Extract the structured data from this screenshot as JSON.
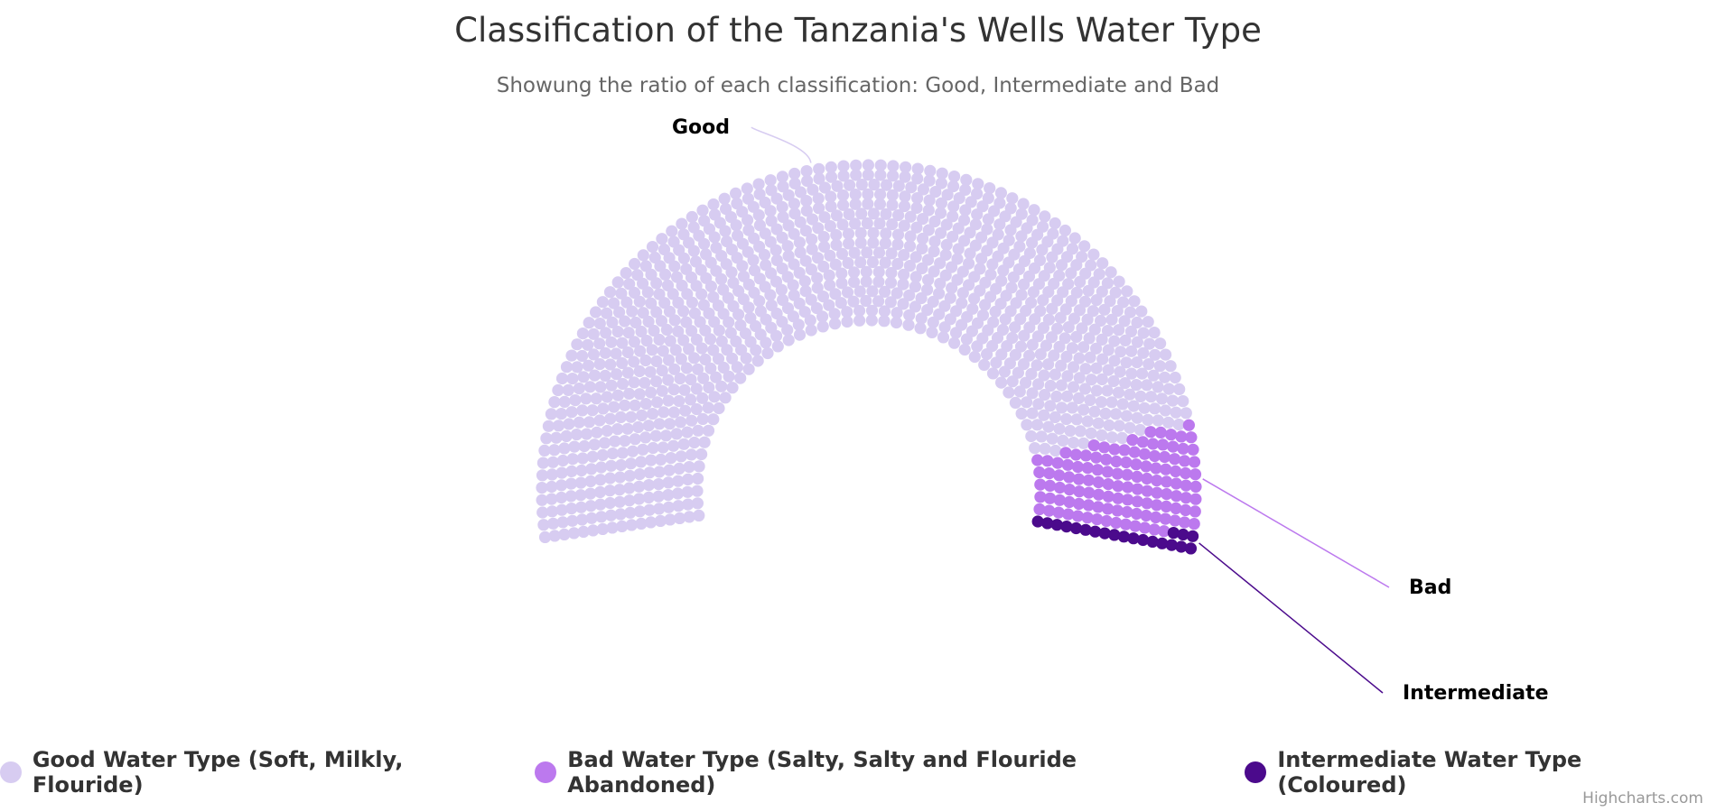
{
  "chart_data": {
    "type": "item",
    "title": "Classification of the Tanzania's Wells Water Type",
    "subtitle": "Showung the ratio of each classification: Good, Intermediate and Bad",
    "legend_placement": "bottom",
    "series": [
      {
        "name": "Good",
        "legend": "Good Water Type (Soft, Milkly, Flouride)",
        "value": 1060,
        "color": "#D7CCF1"
      },
      {
        "name": "Bad",
        "legend": "Bad Water Type (Salty, Salty and Flouride Abandoned)",
        "value": 120,
        "color": "#BC79EE"
      },
      {
        "name": "Intermediate",
        "legend": "Intermediate Water Type (Coloured)",
        "value": 20,
        "color": "#4B0A8C"
      }
    ]
  },
  "credits": "Highcharts.com"
}
